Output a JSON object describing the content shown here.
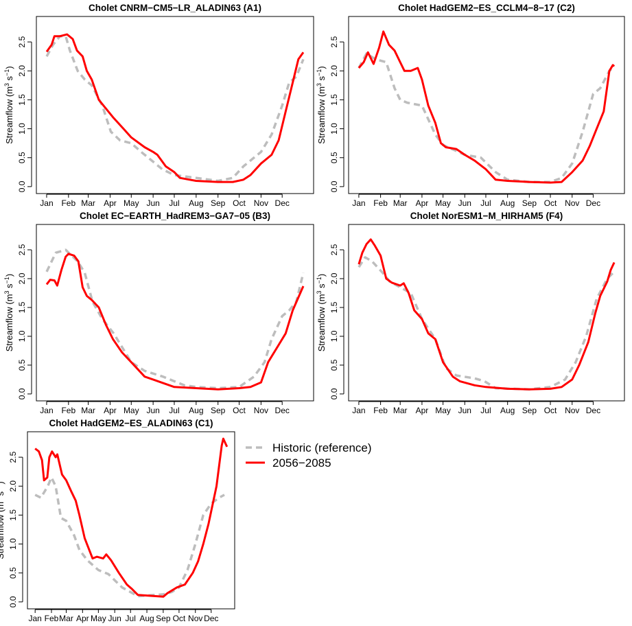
{
  "chart_data": {
    "type": "line",
    "xlabel": "",
    "ylabel": "Streamflow (m³ s⁻¹)",
    "ylabel_parts": {
      "prefix": "Streamflow (m",
      "sup1": "3",
      "mid": " s",
      "sup2": "−1",
      "suffix": ")"
    },
    "x_unit": "day of year",
    "xlim": [
      1,
      365
    ],
    "ylim": [
      0,
      2.8
    ],
    "y_ticks": [
      0.0,
      0.5,
      1.0,
      1.5,
      2.0,
      2.5
    ],
    "y_tick_labels": [
      "0.0",
      "0.5",
      "1.0",
      "1.5",
      "2.0",
      "2.5"
    ],
    "x_ticks": [
      1,
      32,
      60,
      91,
      121,
      152,
      182,
      213,
      244,
      274,
      305,
      335
    ],
    "x_tick_labels": [
      "Jan",
      "Feb",
      "Mar",
      "Apr",
      "May",
      "Jun",
      "Jul",
      "Aug",
      "Sep",
      "Oct",
      "Nov",
      "Dec"
    ],
    "legend": {
      "placement": "right of bottom panel",
      "entries": [
        {
          "label": "Historic (reference)",
          "color": "#bdbdbd",
          "style": "dashed"
        },
        {
          "label": "2056−2085",
          "color": "#ff0000",
          "style": "solid"
        }
      ]
    },
    "panels": [
      {
        "title": "Cholet CNRM−CM5−LR_ALADIN63 (A1)",
        "series": [
          {
            "name": "Historic (reference)",
            "x": [
              1,
              10,
              20,
              28,
              34,
              45,
              55,
              65,
              80,
              92,
              105,
              121,
              135,
              150,
              165,
              182,
              213,
              244,
              265,
              280,
              295,
              305,
              320,
              335,
              345,
              355,
              365
            ],
            "values": [
              2.25,
              2.45,
              2.6,
              2.6,
              2.35,
              2.0,
              1.85,
              1.75,
              1.4,
              0.95,
              0.8,
              0.75,
              0.6,
              0.45,
              0.3,
              0.2,
              0.15,
              0.1,
              0.15,
              0.35,
              0.5,
              0.6,
              0.9,
              1.4,
              1.8,
              1.9,
              2.2
            ]
          },
          {
            "name": "2056−2085",
            "x": [
              1,
              8,
              12,
              20,
              30,
              38,
              44,
              52,
              58,
              65,
              75,
              85,
              95,
              110,
              121,
              140,
              152,
              158,
              170,
              182,
              190,
              213,
              244,
              265,
              280,
              290,
              305,
              320,
              330,
              340,
              350,
              358,
              365
            ],
            "values": [
              2.33,
              2.45,
              2.6,
              2.6,
              2.63,
              2.55,
              2.35,
              2.25,
              2.0,
              1.85,
              1.5,
              1.35,
              1.2,
              1.0,
              0.85,
              0.68,
              0.6,
              0.55,
              0.35,
              0.25,
              0.15,
              0.1,
              0.08,
              0.08,
              0.12,
              0.2,
              0.4,
              0.55,
              0.8,
              1.3,
              1.8,
              2.2,
              2.32
            ]
          }
        ]
      },
      {
        "title": "Cholet HadGEM2−ES_CCLM4−8−17 (C2)",
        "series": [
          {
            "name": "Historic (reference)",
            "x": [
              1,
              12,
              25,
              40,
              52,
              60,
              70,
              91,
              110,
              121,
              152,
              175,
              196,
              213,
              244,
              274,
              290,
              305,
              320,
              335,
              345,
              358,
              365
            ],
            "values": [
              2.05,
              2.3,
              2.2,
              2.15,
              1.7,
              1.5,
              1.45,
              1.4,
              0.9,
              0.72,
              0.55,
              0.5,
              0.25,
              0.12,
              0.08,
              0.08,
              0.15,
              0.4,
              0.95,
              1.6,
              1.7,
              2.0,
              2.08
            ]
          },
          {
            "name": "2056−2085",
            "x": [
              1,
              8,
              14,
              22,
              30,
              36,
              44,
              52,
              60,
              66,
              75,
              85,
              91,
              100,
              110,
              118,
              125,
              140,
              152,
              166,
              182,
              196,
              213,
              244,
              274,
              290,
              305,
              320,
              330,
              340,
              350,
              358,
              363,
              365
            ],
            "values": [
              2.05,
              2.15,
              2.32,
              2.12,
              2.4,
              2.68,
              2.45,
              2.35,
              2.15,
              2.0,
              2.0,
              2.05,
              1.85,
              1.4,
              1.1,
              0.75,
              0.68,
              0.65,
              0.55,
              0.45,
              0.3,
              0.12,
              0.1,
              0.08,
              0.07,
              0.08,
              0.25,
              0.45,
              0.7,
              1.0,
              1.3,
              2.0,
              2.1,
              2.08
            ]
          }
        ]
      },
      {
        "title": "Cholet EC−EARTH_HadREM3−GA7−05 (B3)",
        "series": [
          {
            "name": "Historic (reference)",
            "x": [
              1,
              14,
              28,
              45,
              55,
              66,
              80,
              96,
              121,
              140,
              166,
              196,
              213,
              244,
              274,
              295,
              310,
              320,
              335,
              345,
              355,
              365
            ],
            "values": [
              2.12,
              2.45,
              2.5,
              2.3,
              2.1,
              1.6,
              1.3,
              1.05,
              0.55,
              0.4,
              0.3,
              0.15,
              0.12,
              0.1,
              0.12,
              0.3,
              0.55,
              0.95,
              1.35,
              1.45,
              1.6,
              2.1
            ]
          },
          {
            "name": "2056−2085",
            "x": [
              1,
              6,
              12,
              16,
              22,
              28,
              32,
              40,
              46,
              52,
              58,
              65,
              75,
              85,
              95,
              108,
              121,
              140,
              152,
              182,
              213,
              244,
              274,
              290,
              305,
              315,
              330,
              340,
              350,
              365
            ],
            "values": [
              1.9,
              1.98,
              1.97,
              1.88,
              2.15,
              2.38,
              2.43,
              2.4,
              2.3,
              1.85,
              1.7,
              1.63,
              1.5,
              1.2,
              0.95,
              0.72,
              0.55,
              0.3,
              0.25,
              0.12,
              0.1,
              0.08,
              0.1,
              0.12,
              0.2,
              0.55,
              0.85,
              1.05,
              1.45,
              1.87
            ]
          }
        ]
      },
      {
        "title": "Cholet NorESM1−M_HIRHAM5 (F4)",
        "series": [
          {
            "name": "Historic (reference)",
            "x": [
              1,
              10,
              20,
              35,
              45,
              60,
              75,
              91,
              110,
              125,
              140,
              166,
              180,
              196,
              244,
              274,
              295,
              310,
              325,
              340,
              355,
              365
            ],
            "values": [
              2.2,
              2.37,
              2.3,
              2.1,
              1.95,
              1.85,
              1.75,
              1.3,
              0.95,
              0.45,
              0.32,
              0.27,
              0.22,
              0.1,
              0.08,
              0.12,
              0.25,
              0.55,
              1.0,
              1.65,
              2.0,
              2.12
            ]
          },
          {
            "name": "2056−2085",
            "x": [
              1,
              6,
              12,
              18,
              24,
              32,
              40,
              48,
              60,
              65,
              72,
              80,
              91,
              100,
              110,
              121,
              135,
              145,
              166,
              182,
              213,
              244,
              274,
              290,
              305,
              315,
              328,
              338,
              345,
              355,
              360,
              365
            ],
            "values": [
              2.25,
              2.45,
              2.6,
              2.68,
              2.57,
              2.4,
              2.0,
              1.93,
              1.88,
              1.92,
              1.75,
              1.45,
              1.3,
              1.05,
              0.95,
              0.55,
              0.3,
              0.22,
              0.15,
              0.12,
              0.09,
              0.08,
              0.09,
              0.12,
              0.25,
              0.5,
              0.9,
              1.4,
              1.7,
              1.95,
              2.15,
              2.28
            ]
          }
        ]
      },
      {
        "title": "Cholet HadGEM2−ES_ALADIN63 (C1)",
        "series": [
          {
            "name": "Historic (reference)",
            "x": [
              1,
              12,
              25,
              32,
              40,
              50,
              60,
              75,
              85,
              100,
              121,
              140,
              166,
              196,
              244,
              260,
              274,
              290,
              305,
              320,
              335,
              350,
              360
            ],
            "values": [
              1.85,
              1.8,
              2.0,
              2.15,
              2.0,
              1.45,
              1.4,
              1.15,
              0.9,
              0.72,
              0.55,
              0.48,
              0.25,
              0.1,
              0.13,
              0.17,
              0.25,
              0.55,
              1.0,
              1.5,
              1.7,
              1.8,
              1.85
            ]
          },
          {
            "name": "2056−2085",
            "x": [
              1,
              8,
              14,
              18,
              24,
              28,
              33,
              40,
              43,
              52,
              60,
              70,
              78,
              85,
              95,
              110,
              118,
              130,
              136,
              145,
              160,
              175,
              185,
              196,
              213,
              244,
              252,
              270,
              285,
              300,
              310,
              320,
              330,
              345,
              355,
              358,
              365
            ],
            "values": [
              2.65,
              2.6,
              2.45,
              2.1,
              2.15,
              2.5,
              2.6,
              2.5,
              2.55,
              2.2,
              2.1,
              1.9,
              1.75,
              1.5,
              1.1,
              0.75,
              0.78,
              0.75,
              0.82,
              0.72,
              0.5,
              0.3,
              0.22,
              0.12,
              0.11,
              0.09,
              0.15,
              0.25,
              0.3,
              0.5,
              0.7,
              1.0,
              1.35,
              2.0,
              2.7,
              2.82,
              2.68
            ]
          }
        ]
      }
    ]
  }
}
